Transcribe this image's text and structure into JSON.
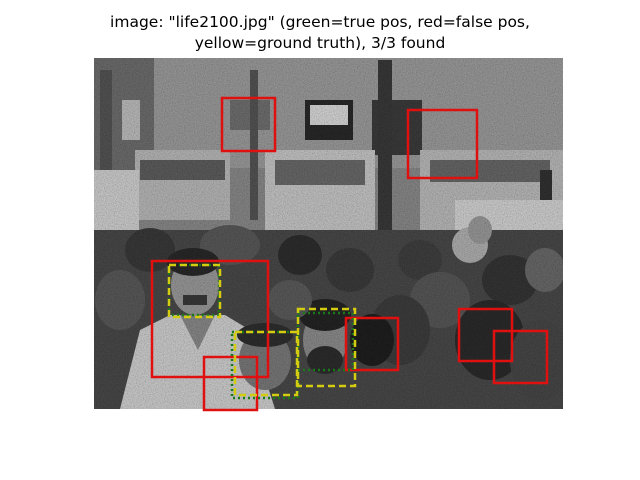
{
  "figure": {
    "title_line1": "image: \"life2100.jpg\" (green=true pos, red=false pos,",
    "title_line2": "yellow=ground truth), 3/3 found"
  },
  "legend_colors": {
    "true_positive": "#1a7a1a",
    "false_positive": "#e01010",
    "ground_truth": "#d4cc10"
  }
}
